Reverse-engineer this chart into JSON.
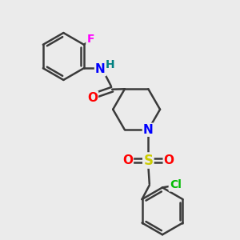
{
  "bg_color": "#ebebeb",
  "bond_color": "#3a3a3a",
  "bond_width": 1.8,
  "atom_colors": {
    "N": "#0000ff",
    "H": "#008080",
    "O": "#ff0000",
    "S": "#cccc00",
    "Cl": "#00bb00",
    "F": "#ff00ff"
  },
  "figsize": [
    3.0,
    3.0
  ],
  "dpi": 100
}
